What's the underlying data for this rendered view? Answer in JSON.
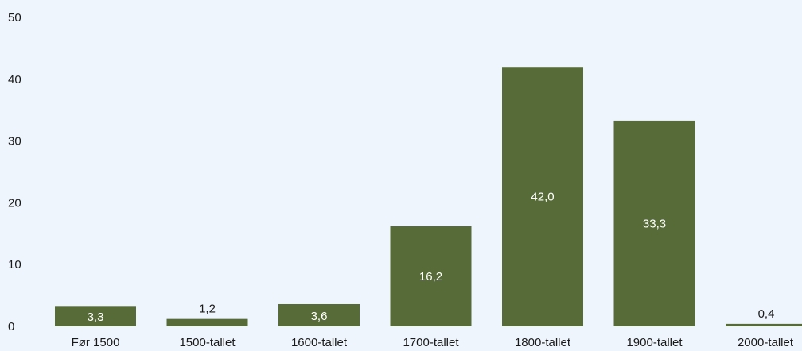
{
  "chart_data": {
    "type": "bar",
    "categories": [
      "Før 1500",
      "1500-tallet",
      "1600-tallet",
      "1700-tallet",
      "1800-tallet",
      "1900-tallet",
      "2000-tallet"
    ],
    "values": [
      3.3,
      1.2,
      3.6,
      16.2,
      42.0,
      33.3,
      0.4
    ],
    "value_labels": [
      "3,3",
      "1,2",
      "3,6",
      "16,2",
      "42,0",
      "33,3",
      "0,4"
    ],
    "yticks": [
      0,
      10,
      20,
      30,
      40,
      50
    ],
    "ylim": [
      0,
      50
    ],
    "title": "",
    "xlabel": "",
    "ylabel": "",
    "grid": false,
    "colors": {
      "bar": "#566b37",
      "label_inside": "#ffffff",
      "label_outside": "#1a1a1a",
      "background": "#eef5fc"
    }
  }
}
